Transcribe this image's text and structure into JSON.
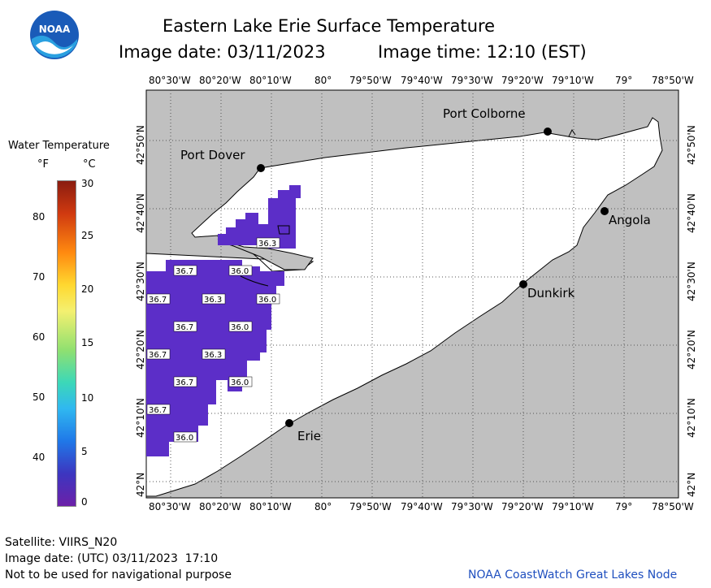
{
  "header": {
    "title": "Eastern Lake Erie Surface Temperature",
    "image_date": "Image date: 03/11/2023",
    "image_time": "Image time: 12:10 (EST)"
  },
  "logo": {
    "text": "NOAA"
  },
  "legend": {
    "title": "Water Temperature",
    "unit_f": "°F",
    "unit_c": "°C",
    "f_ticks": [
      "80",
      "70",
      "60",
      "50",
      "40"
    ],
    "c_ticks": [
      "30",
      "25",
      "20",
      "15",
      "10",
      "5",
      "0"
    ]
  },
  "axes": {
    "top_ticks": [
      "80°30'W",
      "80°20'W",
      "80°10'W",
      "80°",
      "79°50'W",
      "79°40'W",
      "79°30'W",
      "79°20'W",
      "79°10'W",
      "79°",
      "78°50'W"
    ],
    "bottom_ticks": [
      "80°30'W",
      "80°20'W",
      "80°10'W",
      "80°",
      "79°50'W",
      "79°40'W",
      "79°30'W",
      "79°20'W",
      "79°10'W",
      "79°",
      "78°50'W"
    ],
    "left_ticks": [
      "42°50'N",
      "42°40'N",
      "42°30'N",
      "42°20'N",
      "42°10'N",
      "42°N"
    ],
    "right_ticks": [
      "42°50'N",
      "42°40'N",
      "42°30'N",
      "42°20'N",
      "42°10'N",
      "42°N"
    ]
  },
  "places": {
    "port_colborne": "Port Colborne",
    "port_dover": "Port Dover",
    "angola": "Angola",
    "dunkirk": "Dunkirk",
    "erie": "Erie"
  },
  "temps": [
    "36.3",
    "36.7",
    "36.0",
    "36.7",
    "36.3",
    "36.0",
    "36.7",
    "36.0",
    "36.7",
    "36.3",
    "36.7",
    "36.0",
    "36.7",
    "36.0"
  ],
  "colors": {
    "land": "#c0c0c0",
    "water": "#ffffff",
    "temperature_patch": "#5c2ec8",
    "grid": "#555555",
    "footer_link": "#1f4fbf"
  },
  "footer": {
    "satellite": "Satellite: VIIRS_N20",
    "utc_date": "Image date: (UTC) 03/11/2023  17:10",
    "disclaimer": "Not to be used for navigational purpose",
    "credit": "NOAA CoastWatch Great Lakes Node"
  }
}
